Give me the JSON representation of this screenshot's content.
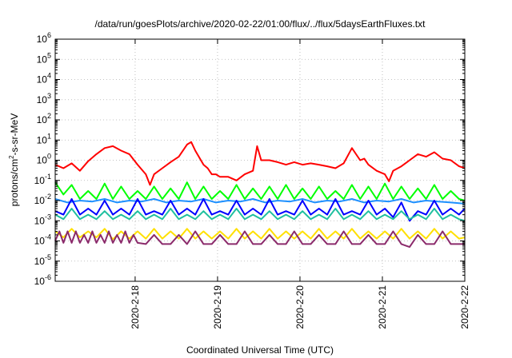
{
  "chart_data": {
    "type": "line",
    "title": "/data/run/goesPlots/archive/2020-02-22/01:00/flux/../flux/5daysEarthFluxes.txt",
    "xlabel": "Coordinated Universal Time (UTC)",
    "ylabel_main": "protons/cm",
    "ylabel_sup": "2",
    "ylabel_rest": "-s-sr-MeV",
    "y_scale": "log",
    "ylim": [
      1e-06,
      1000000.0
    ],
    "y_ticks": [
      {
        "base": "10",
        "exp": "-6",
        "value": 1e-06
      },
      {
        "base": "10",
        "exp": "-5",
        "value": 1e-05
      },
      {
        "base": "10",
        "exp": "-4",
        "value": 0.0001
      },
      {
        "base": "10",
        "exp": "-3",
        "value": 0.001
      },
      {
        "base": "10",
        "exp": "-2",
        "value": 0.01
      },
      {
        "base": "10",
        "exp": "-1",
        "value": 0.1
      },
      {
        "base": "10",
        "exp": "0",
        "value": 1
      },
      {
        "base": "10",
        "exp": "1",
        "value": 10
      },
      {
        "base": "10",
        "exp": "2",
        "value": 100
      },
      {
        "base": "10",
        "exp": "3",
        "value": 1000
      },
      {
        "base": "10",
        "exp": "4",
        "value": 10000
      },
      {
        "base": "10",
        "exp": "5",
        "value": 100000
      },
      {
        "base": "10",
        "exp": "6",
        "value": 1000000
      }
    ],
    "x_days": {
      "min": 0,
      "max": 4.97
    },
    "x_ticks": [
      {
        "label": "2020-2-18",
        "day": 0.97
      },
      {
        "label": "2020-2-19",
        "day": 1.97
      },
      {
        "label": "2020-2-20",
        "day": 2.97
      },
      {
        "label": "2020-2-21",
        "day": 3.97
      },
      {
        "label": "2020-2-22",
        "day": 4.97
      }
    ],
    "grid": true,
    "series": [
      {
        "color": "#ff0000",
        "x": [
          0.0,
          0.1,
          0.2,
          0.3,
          0.4,
          0.5,
          0.6,
          0.7,
          0.8,
          0.9,
          1.0,
          1.1,
          1.15,
          1.2,
          1.3,
          1.4,
          1.5,
          1.6,
          1.65,
          1.7,
          1.8,
          1.85,
          1.9,
          1.95,
          2.0,
          2.1,
          2.2,
          2.3,
          2.4,
          2.45,
          2.5,
          2.6,
          2.7,
          2.8,
          2.9,
          3.0,
          3.1,
          3.2,
          3.3,
          3.4,
          3.5,
          3.6,
          3.7,
          3.75,
          3.8,
          3.9,
          4.0,
          4.05,
          4.1,
          4.2,
          4.3,
          4.4,
          4.5,
          4.6,
          4.7,
          4.8,
          4.9,
          4.97
        ],
        "y": [
          0.6,
          0.4,
          0.7,
          0.3,
          0.9,
          2.0,
          4.0,
          5.0,
          3.0,
          2.0,
          0.6,
          0.2,
          0.06,
          0.2,
          0.4,
          0.8,
          1.5,
          6.0,
          8.0,
          3.0,
          0.6,
          0.4,
          0.2,
          0.2,
          0.15,
          0.15,
          0.1,
          0.2,
          0.3,
          5.0,
          1.0,
          1.0,
          0.8,
          0.6,
          0.8,
          0.6,
          0.7,
          0.6,
          0.5,
          0.4,
          0.7,
          4.0,
          1.0,
          1.2,
          0.6,
          0.3,
          0.2,
          0.09,
          0.3,
          0.5,
          1.0,
          2.0,
          1.5,
          2.5,
          1.2,
          1.0,
          0.5,
          0.4
        ]
      },
      {
        "color": "#00ff00",
        "x": [
          0.0,
          0.1,
          0.2,
          0.3,
          0.4,
          0.5,
          0.6,
          0.7,
          0.8,
          0.9,
          1.0,
          1.1,
          1.2,
          1.3,
          1.4,
          1.5,
          1.6,
          1.7,
          1.8,
          1.9,
          2.0,
          2.1,
          2.2,
          2.3,
          2.4,
          2.5,
          2.6,
          2.7,
          2.8,
          2.9,
          3.0,
          3.1,
          3.2,
          3.3,
          3.4,
          3.5,
          3.6,
          3.7,
          3.8,
          3.9,
          4.0,
          4.1,
          4.2,
          4.3,
          4.4,
          4.5,
          4.6,
          4.7,
          4.8,
          4.9,
          4.97
        ],
        "y": [
          0.08,
          0.02,
          0.06,
          0.012,
          0.03,
          0.012,
          0.07,
          0.012,
          0.05,
          0.012,
          0.03,
          0.012,
          0.05,
          0.012,
          0.04,
          0.012,
          0.08,
          0.012,
          0.05,
          0.012,
          0.03,
          0.012,
          0.06,
          0.012,
          0.04,
          0.012,
          0.05,
          0.012,
          0.06,
          0.012,
          0.04,
          0.012,
          0.05,
          0.012,
          0.03,
          0.012,
          0.06,
          0.012,
          0.05,
          0.012,
          0.07,
          0.012,
          0.05,
          0.012,
          0.04,
          0.012,
          0.06,
          0.012,
          0.03,
          0.012,
          0.01
        ]
      },
      {
        "color": "#1e90ff",
        "x": [
          0.0,
          0.15,
          0.3,
          0.45,
          0.6,
          0.75,
          0.9,
          1.05,
          1.2,
          1.35,
          1.5,
          1.65,
          1.8,
          1.95,
          2.1,
          2.25,
          2.4,
          2.55,
          2.7,
          2.85,
          3.0,
          3.15,
          3.3,
          3.45,
          3.6,
          3.75,
          3.9,
          4.05,
          4.2,
          4.35,
          4.5,
          4.65,
          4.8,
          4.97
        ],
        "y": [
          0.012,
          0.008,
          0.01,
          0.009,
          0.012,
          0.008,
          0.01,
          0.009,
          0.012,
          0.008,
          0.01,
          0.009,
          0.012,
          0.008,
          0.01,
          0.009,
          0.012,
          0.008,
          0.01,
          0.009,
          0.012,
          0.008,
          0.01,
          0.009,
          0.012,
          0.008,
          0.01,
          0.009,
          0.012,
          0.008,
          0.01,
          0.009,
          0.008,
          0.007
        ]
      },
      {
        "color": "#0000ff",
        "x": [
          0.0,
          0.1,
          0.2,
          0.3,
          0.4,
          0.5,
          0.6,
          0.7,
          0.8,
          0.9,
          1.0,
          1.1,
          1.2,
          1.3,
          1.4,
          1.5,
          1.6,
          1.7,
          1.8,
          1.9,
          2.0,
          2.1,
          2.2,
          2.3,
          2.4,
          2.5,
          2.6,
          2.7,
          2.8,
          2.9,
          3.0,
          3.1,
          3.2,
          3.3,
          3.4,
          3.5,
          3.6,
          3.7,
          3.8,
          3.9,
          4.0,
          4.1,
          4.2,
          4.3,
          4.4,
          4.5,
          4.6,
          4.7,
          4.8,
          4.9,
          4.97
        ],
        "y": [
          0.003,
          0.002,
          0.012,
          0.002,
          0.004,
          0.002,
          0.01,
          0.002,
          0.004,
          0.002,
          0.012,
          0.002,
          0.003,
          0.002,
          0.01,
          0.002,
          0.004,
          0.002,
          0.012,
          0.002,
          0.003,
          0.002,
          0.01,
          0.002,
          0.004,
          0.002,
          0.012,
          0.002,
          0.003,
          0.002,
          0.01,
          0.002,
          0.004,
          0.002,
          0.012,
          0.002,
          0.003,
          0.002,
          0.01,
          0.002,
          0.004,
          0.0015,
          0.008,
          0.001,
          0.003,
          0.002,
          0.01,
          0.002,
          0.004,
          0.002,
          0.004
        ]
      },
      {
        "color": "#20c0a0",
        "x": [
          0.0,
          0.1,
          0.2,
          0.3,
          0.4,
          0.5,
          0.6,
          0.7,
          0.8,
          0.9,
          1.0,
          1.1,
          1.2,
          1.3,
          1.4,
          1.5,
          1.6,
          1.7,
          1.8,
          1.9,
          2.0,
          2.1,
          2.2,
          2.3,
          2.4,
          2.5,
          2.6,
          2.7,
          2.8,
          2.9,
          3.0,
          3.1,
          3.2,
          3.3,
          3.4,
          3.5,
          3.6,
          3.7,
          3.8,
          3.9,
          4.0,
          4.1,
          4.2,
          4.3,
          4.4,
          4.5,
          4.6,
          4.7,
          4.8,
          4.9,
          4.97
        ],
        "y": [
          0.002,
          0.0012,
          0.004,
          0.0012,
          0.002,
          0.0012,
          0.003,
          0.0012,
          0.002,
          0.0012,
          0.003,
          0.0012,
          0.002,
          0.0012,
          0.004,
          0.0012,
          0.002,
          0.0012,
          0.003,
          0.0012,
          0.002,
          0.0012,
          0.004,
          0.0012,
          0.002,
          0.0012,
          0.003,
          0.0012,
          0.002,
          0.0012,
          0.003,
          0.0012,
          0.002,
          0.0012,
          0.004,
          0.0012,
          0.002,
          0.0012,
          0.003,
          0.0012,
          0.002,
          0.0012,
          0.003,
          0.0012,
          0.002,
          0.0012,
          0.004,
          0.0012,
          0.002,
          0.0012,
          0.001
        ]
      },
      {
        "color": "#ffe000",
        "x": [
          0.0,
          0.1,
          0.2,
          0.3,
          0.4,
          0.5,
          0.6,
          0.7,
          0.8,
          0.9,
          1.0,
          1.1,
          1.2,
          1.3,
          1.4,
          1.5,
          1.6,
          1.7,
          1.8,
          1.9,
          2.0,
          2.1,
          2.2,
          2.3,
          2.4,
          2.5,
          2.6,
          2.7,
          2.8,
          2.9,
          3.0,
          3.1,
          3.2,
          3.3,
          3.4,
          3.5,
          3.6,
          3.7,
          3.8,
          3.9,
          4.0,
          4.1,
          4.2,
          4.3,
          4.4,
          4.5,
          4.6,
          4.7,
          4.8,
          4.9,
          4.97
        ],
        "y": [
          0.0003,
          0.00015,
          0.0004,
          0.00015,
          0.0003,
          0.00015,
          0.0004,
          0.00012,
          0.0003,
          0.00013,
          0.0003,
          0.00013,
          0.0004,
          0.00013,
          0.0003,
          0.00013,
          0.0004,
          0.00013,
          0.0003,
          0.00013,
          0.0003,
          0.00013,
          0.0004,
          0.00013,
          0.0003,
          0.00013,
          0.0004,
          0.00013,
          0.0003,
          0.00013,
          0.0003,
          0.00013,
          0.0004,
          0.00013,
          0.0003,
          0.00013,
          0.0004,
          0.00013,
          0.0003,
          0.00013,
          0.0003,
          0.00013,
          0.0004,
          0.00013,
          0.0003,
          0.00013,
          0.0004,
          0.00013,
          0.0003,
          0.00013,
          0.00015
        ]
      },
      {
        "color": "#8b2a6b",
        "x": [
          0.0,
          0.05,
          0.1,
          0.15,
          0.2,
          0.25,
          0.3,
          0.35,
          0.4,
          0.45,
          0.5,
          0.55,
          0.6,
          0.65,
          0.7,
          0.75,
          0.8,
          0.85,
          0.9,
          0.95,
          1.0,
          1.1,
          1.2,
          1.3,
          1.4,
          1.5,
          1.6,
          1.7,
          1.8,
          1.9,
          2.0,
          2.1,
          2.2,
          2.3,
          2.4,
          2.5,
          2.6,
          2.7,
          2.8,
          2.9,
          3.0,
          3.1,
          3.2,
          3.3,
          3.4,
          3.5,
          3.6,
          3.7,
          3.8,
          3.9,
          4.0,
          4.1,
          4.2,
          4.3,
          4.4,
          4.5,
          4.6,
          4.7,
          4.8,
          4.9,
          4.97
        ],
        "y": [
          0.0001,
          0.0003,
          8e-05,
          0.0003,
          8e-05,
          0.0003,
          8e-05,
          0.0002,
          8e-05,
          0.0003,
          8e-05,
          0.0002,
          8e-05,
          0.0003,
          8e-05,
          0.0002,
          8e-05,
          0.0003,
          8e-05,
          0.0002,
          8e-05,
          7e-05,
          0.0002,
          7e-05,
          7e-05,
          0.0002,
          7e-05,
          0.0003,
          7e-05,
          7e-05,
          0.0002,
          7e-05,
          7e-05,
          0.0003,
          7e-05,
          7e-05,
          0.0002,
          7e-05,
          7e-05,
          0.0003,
          7e-05,
          7e-05,
          0.0002,
          7e-05,
          7e-05,
          0.0003,
          7e-05,
          7e-05,
          0.0002,
          7e-05,
          7e-05,
          0.0003,
          7e-05,
          5e-05,
          0.0002,
          7e-05,
          7e-05,
          0.0003,
          7e-05,
          7e-05,
          7e-05
        ]
      }
    ]
  }
}
